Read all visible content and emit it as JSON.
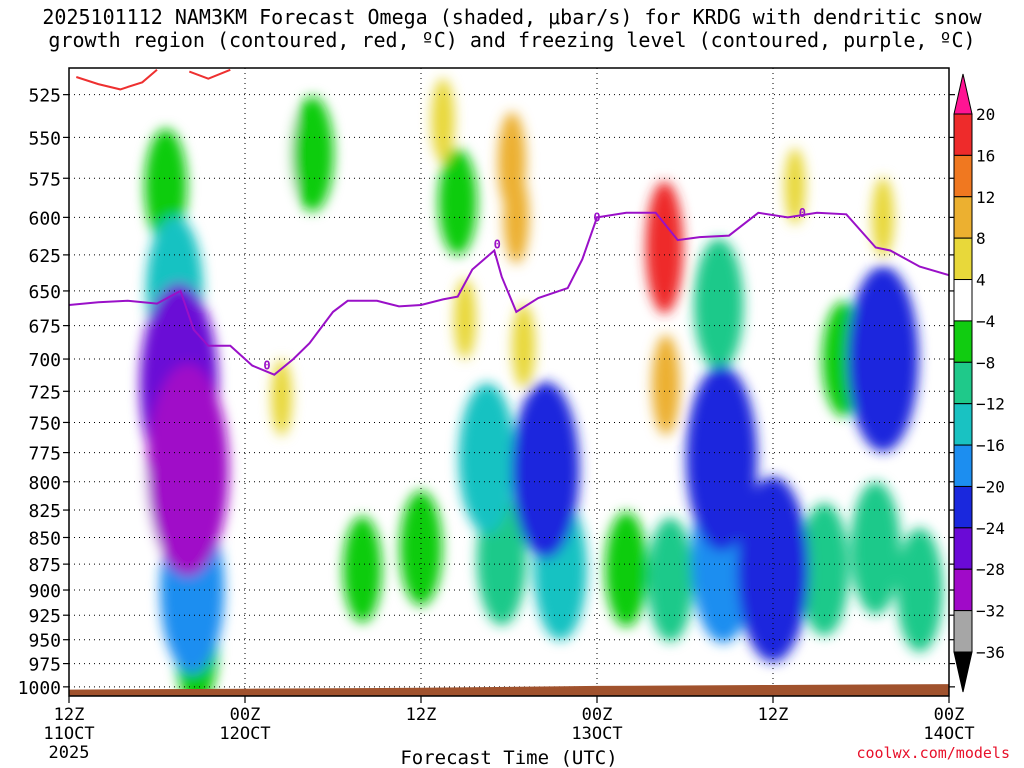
{
  "title": {
    "line1": "2025101112 NAM3KM Forecast Omega (shaded, μbar/s) for KRDG with dendritic snow",
    "line2": "growth region (contoured, red, ºC) and freezing level (contoured, purple, ºC)"
  },
  "credit": "coolwx.com/models",
  "chart_data": {
    "type": "heatmap",
    "xlabel": "Forecast Time (UTC)",
    "ylabel": "",
    "ylim": [
      1010,
      510
    ],
    "y_scale": "log-pressure",
    "grid": true,
    "x_ticks": [
      {
        "hour": 0,
        "lines": [
          "12Z",
          "11OCT",
          "2025"
        ]
      },
      {
        "hour": 12,
        "lines": [
          "00Z",
          "12OCT"
        ]
      },
      {
        "hour": 24,
        "lines": [
          "12Z"
        ]
      },
      {
        "hour": 36,
        "lines": [
          "00Z",
          "13OCT"
        ]
      },
      {
        "hour": 48,
        "lines": [
          "12Z"
        ]
      },
      {
        "hour": 60,
        "lines": [
          "00Z",
          "14OCT"
        ]
      }
    ],
    "y_ticks": [
      525,
      550,
      575,
      600,
      625,
      650,
      675,
      700,
      725,
      750,
      775,
      800,
      825,
      850,
      875,
      900,
      925,
      950,
      975,
      1000
    ],
    "colorbar": {
      "labels": [
        "20",
        "16",
        "12",
        "8",
        "4",
        "−4",
        "−8",
        "−12",
        "−16",
        "−20",
        "−24",
        "−28",
        "−32",
        "−36"
      ],
      "colors": [
        "#ff1493",
        "#ee2b2b",
        "#f07820",
        "#ecb030",
        "#e8d83a",
        "#ffffff",
        "#11cc11",
        "#1fc98a",
        "#19c2c2",
        "#1c8ef0",
        "#1a28dd",
        "#6a0ad6",
        "#a00ac8",
        "#a6a6a6",
        "#000000"
      ]
    },
    "omega_cells": [
      {
        "t": 7.5,
        "p": 720,
        "v": -28
      },
      {
        "t": 8.1,
        "p": 790,
        "v": -30
      },
      {
        "t": 7.2,
        "p": 650,
        "v": -16
      },
      {
        "t": 6.6,
        "p": 580,
        "v": -8
      },
      {
        "t": 8.4,
        "p": 900,
        "v": -20
      },
      {
        "t": 8.7,
        "p": 960,
        "v": -8
      },
      {
        "t": 6.0,
        "p": 820,
        "v": -4
      },
      {
        "t": 14.5,
        "p": 560,
        "v": -4
      },
      {
        "t": 16.6,
        "p": 560,
        "v": -8
      },
      {
        "t": 26.5,
        "p": 590,
        "v": -6
      },
      {
        "t": 28.5,
        "p": 780,
        "v": -16
      },
      {
        "t": 29.5,
        "p": 870,
        "v": -12
      },
      {
        "t": 32.5,
        "p": 790,
        "v": -22
      },
      {
        "t": 33.5,
        "p": 880,
        "v": -14
      },
      {
        "t": 24.0,
        "p": 860,
        "v": -8
      },
      {
        "t": 20.0,
        "p": 880,
        "v": -6
      },
      {
        "t": 38.0,
        "p": 880,
        "v": -8
      },
      {
        "t": 41.0,
        "p": 890,
        "v": -10
      },
      {
        "t": 44.5,
        "p": 780,
        "v": -24
      },
      {
        "t": 44.6,
        "p": 870,
        "v": -20
      },
      {
        "t": 44.3,
        "p": 660,
        "v": -12
      },
      {
        "t": 47.5,
        "p": 880,
        "v": -18
      },
      {
        "t": 48.0,
        "p": 880,
        "v": -24
      },
      {
        "t": 51.5,
        "p": 880,
        "v": -12
      },
      {
        "t": 55.5,
        "p": 700,
        "v": -24
      },
      {
        "t": 55.0,
        "p": 860,
        "v": -12
      },
      {
        "t": 58.0,
        "p": 900,
        "v": -10
      },
      {
        "t": 52.8,
        "p": 700,
        "v": -8
      },
      {
        "t": 30.5,
        "p": 600,
        "v": 8
      },
      {
        "t": 25.5,
        "p": 540,
        "v": 6
      },
      {
        "t": 40.6,
        "p": 620,
        "v": 18
      },
      {
        "t": 40.7,
        "p": 720,
        "v": 10
      },
      {
        "t": 31.0,
        "p": 690,
        "v": 6
      },
      {
        "t": 27.0,
        "p": 670,
        "v": 5
      },
      {
        "t": 8.0,
        "p": 880,
        "v": 5
      },
      {
        "t": 14.5,
        "p": 730,
        "v": 4
      },
      {
        "t": 55.5,
        "p": 600,
        "v": 5
      },
      {
        "t": 49.5,
        "p": 580,
        "v": 4
      },
      {
        "t": 30.2,
        "p": 565,
        "v": 10
      }
    ],
    "freezing_level": {
      "label": "0",
      "points": [
        [
          0,
          660
        ],
        [
          2,
          658
        ],
        [
          4,
          657
        ],
        [
          6,
          659
        ],
        [
          7.6,
          650
        ],
        [
          8.5,
          678
        ],
        [
          9.5,
          690
        ],
        [
          11,
          690
        ],
        [
          12.5,
          705
        ],
        [
          14,
          712
        ],
        [
          15.3,
          700
        ],
        [
          16.4,
          688
        ],
        [
          18,
          665
        ],
        [
          19,
          657
        ],
        [
          21,
          657
        ],
        [
          22.5,
          661
        ],
        [
          24,
          660
        ],
        [
          25.5,
          656
        ],
        [
          26.5,
          654
        ],
        [
          27.5,
          635
        ],
        [
          29,
          622
        ],
        [
          29.5,
          640
        ],
        [
          30.5,
          665
        ],
        [
          32,
          655
        ],
        [
          34,
          648
        ],
        [
          35,
          628
        ],
        [
          36,
          600
        ],
        [
          38,
          597
        ],
        [
          40,
          597
        ],
        [
          41.5,
          615
        ],
        [
          43,
          613
        ],
        [
          45,
          612
        ],
        [
          47,
          597
        ],
        [
          49,
          600
        ],
        [
          51,
          597
        ],
        [
          53,
          598
        ],
        [
          55,
          620
        ],
        [
          56,
          622
        ],
        [
          58,
          633
        ],
        [
          60,
          639
        ]
      ]
    },
    "dgz_contour": {
      "points": [
        [
          0.5,
          515
        ],
        [
          2,
          519
        ],
        [
          3.5,
          522
        ],
        [
          5,
          518
        ],
        [
          6,
          511
        ]
      ],
      "points2": [
        [
          8.2,
          512
        ],
        [
          9.5,
          516
        ],
        [
          11,
          511
        ]
      ]
    },
    "surface_pressure": [
      [
        0,
        1003
      ],
      [
        12,
        1002
      ],
      [
        24,
        1001
      ],
      [
        36,
        999
      ],
      [
        48,
        998
      ],
      [
        60,
        997
      ]
    ]
  }
}
